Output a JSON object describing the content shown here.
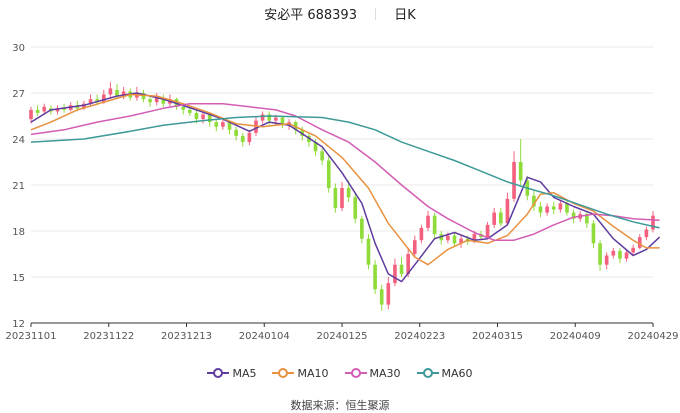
{
  "header": {
    "stock_name": "安必平 688393",
    "period": "日K"
  },
  "source": "数据来源：恒生聚源",
  "colors": {
    "up": "#f4617f",
    "down": "#8fdb3a",
    "MA5": "#5e3b9e",
    "MA10": "#e8913f",
    "MA30": "#d35db5",
    "MA60": "#3d9a98"
  },
  "chart_data": {
    "type": "candlestick",
    "title": "安必平 688393",
    "ylim": [
      12,
      30
    ],
    "yticks": [
      12,
      15,
      18,
      21,
      24,
      27,
      30
    ],
    "xticks": [
      "20231101",
      "20231122",
      "20231213",
      "20240104",
      "20240125",
      "20240223",
      "20240315",
      "20240409",
      "20240429"
    ],
    "grid": "horizontal",
    "legend_position": "bottom",
    "legend": [
      "MA5",
      "MA10",
      "MA30",
      "MA60"
    ],
    "candles": [
      [
        25.3,
        25.9,
        26.1,
        25.0
      ],
      [
        25.9,
        25.7,
        26.2,
        25.5
      ],
      [
        25.8,
        26.1,
        26.3,
        25.6
      ],
      [
        26.0,
        25.8,
        26.2,
        25.6
      ],
      [
        25.8,
        26.0,
        26.2,
        25.6
      ],
      [
        26.0,
        25.9,
        26.3,
        25.7
      ],
      [
        25.9,
        26.2,
        26.4,
        25.8
      ],
      [
        26.2,
        26.0,
        26.5,
        25.8
      ],
      [
        26.0,
        26.3,
        26.5,
        25.9
      ],
      [
        26.3,
        26.6,
        26.9,
        26.1
      ],
      [
        26.6,
        26.4,
        26.9,
        26.2
      ],
      [
        26.4,
        26.9,
        27.2,
        26.3
      ],
      [
        26.9,
        27.3,
        27.7,
        26.7
      ],
      [
        27.2,
        26.8,
        27.6,
        26.6
      ],
      [
        26.8,
        27.1,
        27.4,
        26.6
      ],
      [
        27.1,
        26.7,
        27.3,
        26.5
      ],
      [
        26.7,
        27.0,
        27.4,
        26.5
      ],
      [
        27.0,
        26.6,
        27.2,
        26.4
      ],
      [
        26.6,
        26.4,
        26.8,
        26.1
      ],
      [
        26.4,
        26.7,
        27.0,
        26.2
      ],
      [
        26.7,
        26.3,
        26.9,
        26.1
      ],
      [
        26.3,
        26.6,
        26.9,
        26.1
      ],
      [
        26.6,
        26.1,
        26.7,
        25.9
      ],
      [
        26.1,
        25.9,
        26.3,
        25.6
      ],
      [
        25.9,
        25.7,
        26.1,
        25.5
      ],
      [
        25.7,
        25.3,
        25.9,
        25.0
      ],
      [
        25.3,
        25.6,
        25.8,
        25.0
      ],
      [
        25.6,
        25.1,
        25.7,
        24.8
      ],
      [
        25.1,
        24.8,
        25.3,
        24.5
      ],
      [
        24.8,
        25.1,
        25.4,
        24.6
      ],
      [
        25.1,
        24.6,
        25.2,
        24.3
      ],
      [
        24.6,
        24.2,
        24.8,
        23.9
      ],
      [
        24.2,
        23.8,
        24.4,
        23.5
      ],
      [
        23.8,
        24.4,
        24.6,
        23.6
      ],
      [
        24.4,
        25.2,
        25.5,
        24.2
      ],
      [
        25.2,
        25.6,
        25.8,
        25.0
      ],
      [
        25.6,
        25.2,
        25.8,
        24.9
      ],
      [
        25.2,
        25.4,
        25.6,
        24.9
      ],
      [
        25.4,
        24.9,
        25.5,
        24.7
      ],
      [
        24.9,
        25.1,
        25.3,
        24.6
      ],
      [
        25.1,
        24.6,
        25.2,
        24.3
      ],
      [
        24.6,
        24.2,
        24.8,
        23.9
      ],
      [
        24.2,
        23.8,
        24.4,
        23.5
      ],
      [
        23.8,
        23.2,
        24.0,
        22.9
      ],
      [
        23.2,
        22.6,
        23.4,
        22.3
      ],
      [
        22.6,
        20.8,
        22.9,
        20.5
      ],
      [
        20.8,
        19.5,
        21.1,
        19.2
      ],
      [
        19.5,
        20.8,
        21.2,
        19.3
      ],
      [
        20.8,
        20.2,
        21.3,
        19.9
      ],
      [
        20.2,
        18.8,
        20.4,
        18.5
      ],
      [
        18.8,
        17.5,
        19.0,
        17.2
      ],
      [
        17.5,
        15.8,
        17.8,
        15.5
      ],
      [
        15.8,
        14.2,
        16.1,
        13.9
      ],
      [
        14.2,
        13.2,
        14.5,
        12.8
      ],
      [
        13.2,
        14.6,
        15.0,
        12.9
      ],
      [
        14.6,
        15.8,
        16.2,
        14.4
      ],
      [
        15.8,
        15.2,
        16.3,
        15.0
      ],
      [
        15.2,
        16.5,
        16.8,
        15.0
      ],
      [
        16.5,
        17.4,
        17.7,
        16.3
      ],
      [
        17.4,
        18.2,
        18.4,
        17.2
      ],
      [
        18.2,
        19.0,
        19.3,
        18.0
      ],
      [
        19.0,
        17.8,
        19.2,
        17.5
      ],
      [
        17.8,
        17.4,
        18.0,
        17.1
      ],
      [
        17.4,
        17.7,
        17.9,
        17.2
      ],
      [
        17.7,
        17.2,
        17.9,
        17.0
      ],
      [
        17.2,
        17.5,
        17.7,
        16.9
      ],
      [
        17.5,
        17.3,
        17.7,
        17.1
      ],
      [
        17.3,
        17.8,
        18.0,
        17.2
      ],
      [
        17.8,
        17.6,
        18.0,
        17.4
      ],
      [
        17.6,
        18.4,
        18.6,
        17.5
      ],
      [
        18.4,
        19.2,
        19.5,
        18.2
      ],
      [
        19.2,
        18.5,
        19.5,
        18.3
      ],
      [
        18.5,
        20.1,
        20.5,
        18.4
      ],
      [
        20.1,
        22.5,
        23.2,
        19.9
      ],
      [
        22.5,
        21.3,
        24.0,
        21.0
      ],
      [
        21.3,
        20.3,
        21.6,
        20.0
      ],
      [
        20.3,
        19.6,
        20.6,
        19.3
      ],
      [
        19.6,
        19.2,
        19.9,
        18.9
      ],
      [
        19.2,
        19.6,
        19.8,
        19.0
      ],
      [
        19.6,
        19.4,
        19.9,
        19.1
      ],
      [
        19.4,
        19.8,
        20.0,
        19.2
      ],
      [
        19.8,
        19.2,
        20.0,
        19.0
      ],
      [
        19.2,
        18.8,
        19.4,
        18.5
      ],
      [
        18.8,
        19.1,
        19.3,
        18.6
      ],
      [
        19.1,
        18.5,
        19.3,
        18.2
      ],
      [
        18.5,
        17.2,
        18.7,
        16.9
      ],
      [
        17.2,
        15.8,
        17.4,
        15.4
      ],
      [
        15.8,
        16.4,
        16.6,
        15.5
      ],
      [
        16.4,
        16.7,
        16.9,
        16.2
      ],
      [
        16.7,
        16.2,
        16.9,
        15.9
      ],
      [
        16.2,
        16.6,
        16.8,
        16.0
      ],
      [
        16.6,
        16.9,
        17.1,
        16.4
      ],
      [
        16.9,
        17.6,
        17.8,
        16.8
      ],
      [
        17.6,
        18.1,
        18.3,
        17.4
      ],
      [
        18.1,
        19.0,
        19.3,
        17.9
      ]
    ],
    "ma": {
      "MA5": [
        [
          0,
          25.1
        ],
        [
          3,
          25.9
        ],
        [
          8,
          26.2
        ],
        [
          13,
          26.8
        ],
        [
          16,
          27.0
        ],
        [
          20,
          26.6
        ],
        [
          25,
          25.9
        ],
        [
          29,
          25.3
        ],
        [
          33,
          24.5
        ],
        [
          36,
          25.1
        ],
        [
          39,
          24.9
        ],
        [
          44,
          23.5
        ],
        [
          47,
          21.8
        ],
        [
          50,
          19.8
        ],
        [
          52,
          17.2
        ],
        [
          54,
          15.2
        ],
        [
          56,
          14.7
        ],
        [
          58,
          15.8
        ],
        [
          61,
          17.5
        ],
        [
          64,
          17.9
        ],
        [
          67,
          17.4
        ],
        [
          69,
          17.5
        ],
        [
          72,
          18.4
        ],
        [
          75,
          21.5
        ],
        [
          77,
          21.2
        ],
        [
          79,
          20.2
        ],
        [
          82,
          19.6
        ],
        [
          85,
          19.1
        ],
        [
          88,
          17.5
        ],
        [
          91,
          16.4
        ],
        [
          93,
          16.8
        ],
        [
          95,
          17.6
        ]
      ],
      "MA10": [
        [
          0,
          24.6
        ],
        [
          3,
          25.1
        ],
        [
          7,
          25.9
        ],
        [
          11,
          26.4
        ],
        [
          15,
          26.9
        ],
        [
          19,
          26.8
        ],
        [
          23,
          26.3
        ],
        [
          27,
          25.7
        ],
        [
          31,
          25.0
        ],
        [
          35,
          24.8
        ],
        [
          39,
          25.0
        ],
        [
          43,
          24.2
        ],
        [
          47,
          22.8
        ],
        [
          51,
          20.8
        ],
        [
          54,
          18.5
        ],
        [
          58,
          16.3
        ],
        [
          60,
          15.8
        ],
        [
          63,
          16.8
        ],
        [
          66,
          17.4
        ],
        [
          69,
          17.2
        ],
        [
          72,
          17.7
        ],
        [
          75,
          19.1
        ],
        [
          77,
          20.4
        ],
        [
          79,
          20.5
        ],
        [
          82,
          19.8
        ],
        [
          85,
          19.3
        ],
        [
          88,
          18.3
        ],
        [
          91,
          17.4
        ],
        [
          93,
          16.9
        ],
        [
          95,
          16.9
        ]
      ],
      "MA30": [
        [
          0,
          24.3
        ],
        [
          5,
          24.6
        ],
        [
          10,
          25.1
        ],
        [
          15,
          25.5
        ],
        [
          20,
          26.0
        ],
        [
          24,
          26.3
        ],
        [
          29,
          26.3
        ],
        [
          33,
          26.1
        ],
        [
          37,
          25.9
        ],
        [
          40,
          25.5
        ],
        [
          44,
          24.6
        ],
        [
          48,
          23.8
        ],
        [
          52,
          22.5
        ],
        [
          56,
          21.0
        ],
        [
          60,
          19.6
        ],
        [
          63,
          18.8
        ],
        [
          67,
          17.9
        ],
        [
          70,
          17.4
        ],
        [
          73,
          17.4
        ],
        [
          76,
          17.8
        ],
        [
          79,
          18.4
        ],
        [
          82,
          18.9
        ],
        [
          85,
          19.1
        ],
        [
          88,
          19.0
        ],
        [
          91,
          18.8
        ],
        [
          95,
          18.7
        ]
      ],
      "MA60": [
        [
          0,
          23.8
        ],
        [
          8,
          24.0
        ],
        [
          15,
          24.5
        ],
        [
          20,
          24.9
        ],
        [
          26,
          25.2
        ],
        [
          31,
          25.4
        ],
        [
          36,
          25.5
        ],
        [
          44,
          25.4
        ],
        [
          48,
          25.1
        ],
        [
          52,
          24.6
        ],
        [
          56,
          23.8
        ],
        [
          60,
          23.2
        ],
        [
          64,
          22.6
        ],
        [
          68,
          21.9
        ],
        [
          72,
          21.2
        ],
        [
          75,
          20.8
        ],
        [
          79,
          20.3
        ],
        [
          83,
          19.7
        ],
        [
          87,
          19.1
        ],
        [
          91,
          18.6
        ],
        [
          95,
          18.2
        ]
      ]
    }
  }
}
